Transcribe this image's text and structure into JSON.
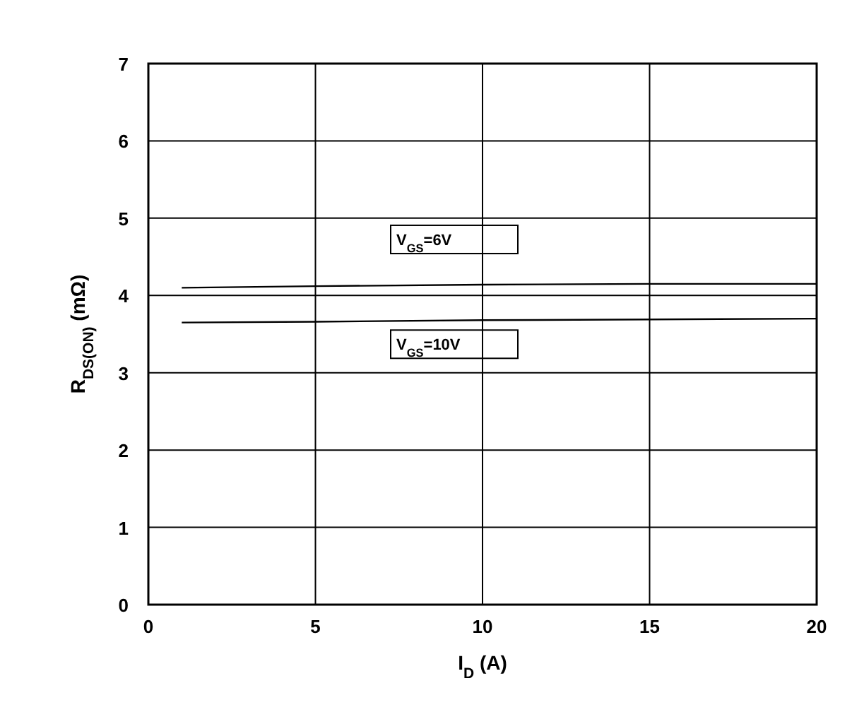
{
  "chart_data": {
    "type": "line",
    "xlabel": "I$_{D}$ (A)",
    "ylabel": "R$_{DS(ON)}$ (mΩ)",
    "xlim": [
      0,
      20
    ],
    "xticks": [
      0,
      5,
      10,
      15,
      20
    ],
    "ylim": [
      0,
      7
    ],
    "yticks": [
      0,
      1,
      2,
      3,
      4,
      5,
      6,
      7
    ],
    "grid": true,
    "legend": false,
    "marker": "none",
    "line_style": "solid",
    "series": [
      {
        "name": "V$_{GS}$=6V",
        "color": "#000000",
        "x": [
          1,
          5,
          10,
          15,
          20
        ],
        "values": [
          4.1,
          4.12,
          4.14,
          4.15,
          4.15
        ]
      },
      {
        "name": "V$_{GS}$=10V",
        "color": "#000000",
        "x": [
          1,
          5,
          10,
          15,
          20
        ],
        "values": [
          3.65,
          3.66,
          3.68,
          3.69,
          3.7
        ]
      }
    ]
  }
}
